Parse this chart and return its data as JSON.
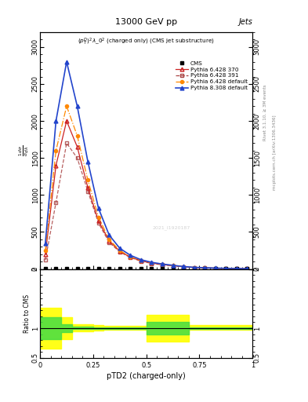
{
  "title_top": "13000 GeV pp",
  "title_right": "Jets",
  "plot_title": "$(p_T^D)^2\\lambda\\_0^2$ (charged only) (CMS jet substructure)",
  "xlabel": "pTD2 (charged-only)",
  "watermark": "2021_I1920187",
  "xlim": [
    0,
    1.0
  ],
  "ylim_main": [
    0,
    3200
  ],
  "ylim_ratio": [
    0.5,
    2.0
  ],
  "cms_color": "#000000",
  "p6_370_color": "#cc2222",
  "p6_391_color": "#aa4444",
  "p6_default_color": "#ff8800",
  "p8_default_color": "#2244cc",
  "x_data": [
    0.025,
    0.075,
    0.125,
    0.175,
    0.225,
    0.275,
    0.325,
    0.375,
    0.425,
    0.475,
    0.525,
    0.575,
    0.625,
    0.675,
    0.725,
    0.775,
    0.825,
    0.875,
    0.925,
    0.975
  ],
  "cms_y": [
    5,
    5,
    5,
    5,
    5,
    5,
    5,
    5,
    5,
    5,
    5,
    5,
    5,
    5,
    5,
    5,
    5,
    5,
    5,
    5
  ],
  "p6_370_y": [
    200,
    1400,
    2000,
    1650,
    1100,
    650,
    380,
    240,
    160,
    110,
    80,
    60,
    45,
    30,
    20,
    15,
    10,
    8,
    5,
    3
  ],
  "p6_391_y": [
    120,
    900,
    1700,
    1500,
    1050,
    620,
    360,
    230,
    155,
    105,
    75,
    55,
    42,
    28,
    18,
    14,
    9,
    7,
    4,
    2
  ],
  "p6_default_y": [
    250,
    1600,
    2200,
    1800,
    1200,
    700,
    400,
    250,
    165,
    115,
    82,
    62,
    46,
    31,
    21,
    16,
    11,
    8,
    5,
    3
  ],
  "p8_default_y": [
    350,
    2000,
    2800,
    2200,
    1450,
    820,
    460,
    280,
    185,
    125,
    90,
    67,
    50,
    33,
    22,
    17,
    12,
    9,
    6,
    4
  ],
  "yticks": [
    0,
    500,
    1000,
    1500,
    2000,
    2500,
    3000
  ],
  "ratio_yellow_x": [
    0.0,
    0.05,
    0.1,
    0.15,
    0.2,
    0.25,
    0.3,
    0.35,
    0.4,
    0.45,
    0.5,
    0.55,
    0.6,
    0.65,
    0.7,
    0.75,
    0.8,
    0.85,
    0.9,
    0.95,
    1.0
  ],
  "ratio_yellow_low": [
    0.65,
    0.65,
    0.82,
    0.95,
    0.95,
    0.96,
    0.97,
    0.97,
    0.97,
    0.97,
    0.78,
    0.78,
    0.78,
    0.78,
    0.97,
    0.97,
    0.97,
    0.97,
    0.97,
    0.97,
    0.97
  ],
  "ratio_yellow_high": [
    1.35,
    1.35,
    1.18,
    1.06,
    1.06,
    1.05,
    1.04,
    1.04,
    1.04,
    1.04,
    1.22,
    1.22,
    1.22,
    1.22,
    1.05,
    1.05,
    1.05,
    1.05,
    1.05,
    1.05,
    1.05
  ],
  "ratio_green_low": [
    0.82,
    0.82,
    0.93,
    0.98,
    0.98,
    0.99,
    0.99,
    0.99,
    0.99,
    0.99,
    0.9,
    0.9,
    0.9,
    0.9,
    0.99,
    0.99,
    0.99,
    0.99,
    0.99,
    0.99,
    0.99
  ],
  "ratio_green_high": [
    1.18,
    1.18,
    1.07,
    1.02,
    1.02,
    1.01,
    1.01,
    1.01,
    1.01,
    1.01,
    1.1,
    1.1,
    1.1,
    1.1,
    1.01,
    1.01,
    1.01,
    1.01,
    1.01,
    1.01,
    1.01
  ],
  "right_label1": "Rivet 3.1.10, ≥ 3M events",
  "right_label2": "mcplots.cern.ch [arXiv:1306.3436]"
}
